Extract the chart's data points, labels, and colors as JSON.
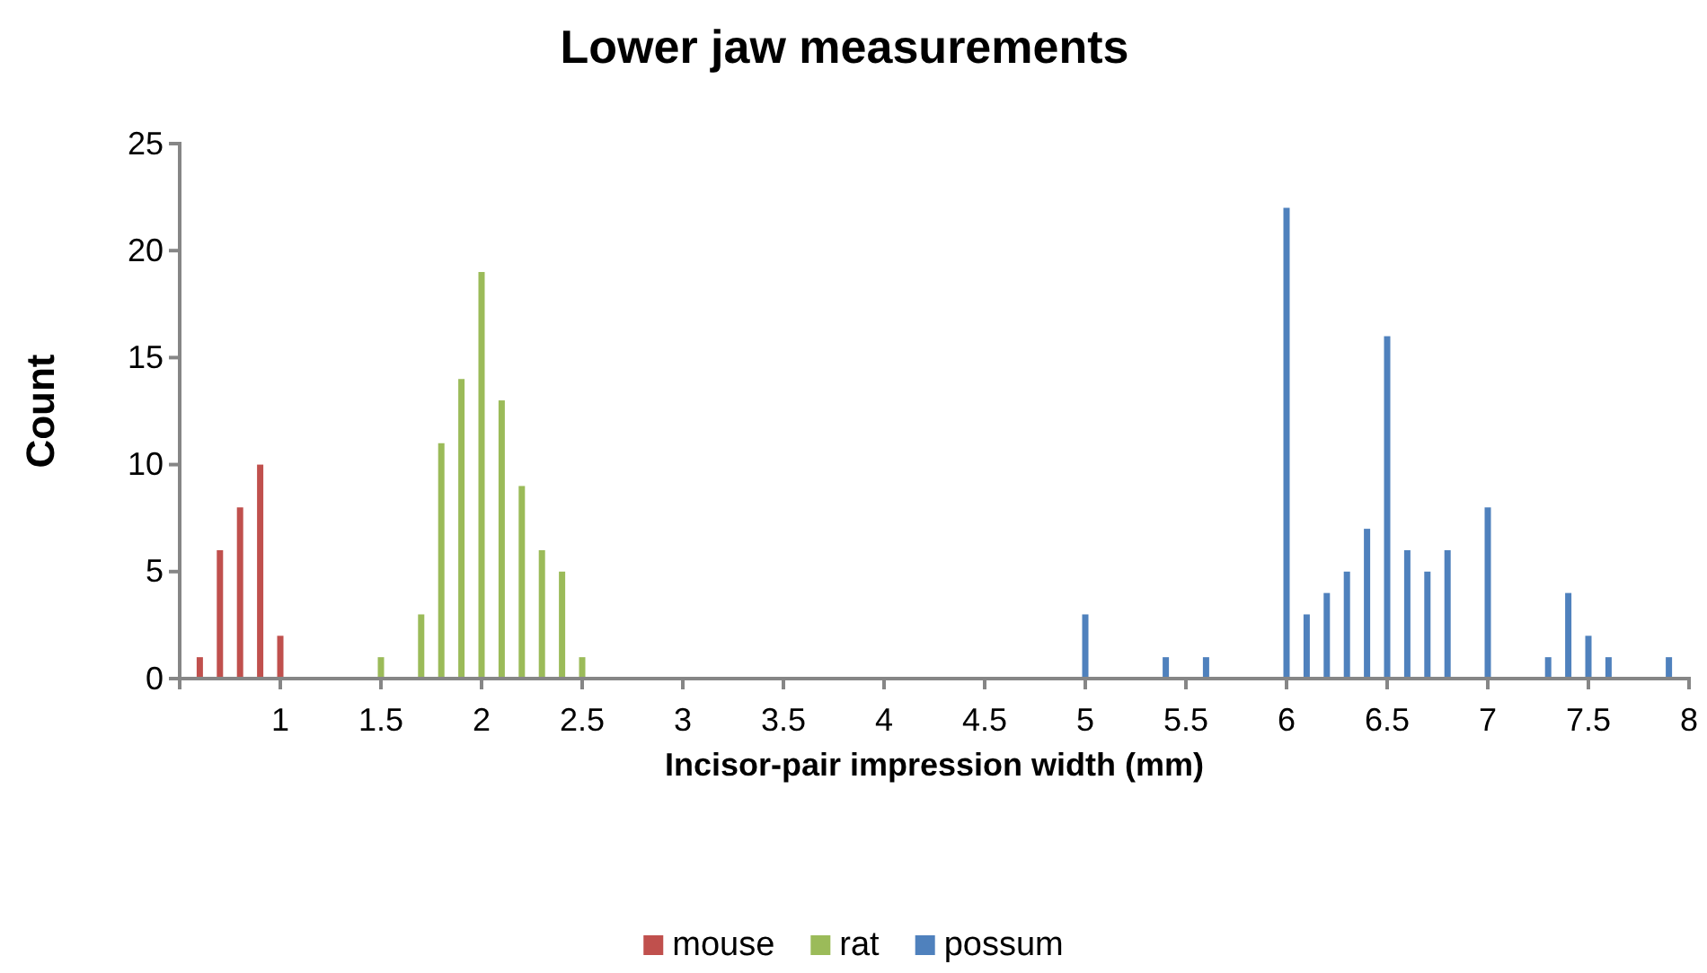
{
  "chart_data": {
    "type": "bar",
    "title": "Lower jaw measurements",
    "xlabel": "Incisor-pair impression width (mm)",
    "ylabel": "Count",
    "xlim": [
      0.5,
      8
    ],
    "xticks": [
      {
        "value": 0.5,
        "label": null
      },
      1,
      1.5,
      2,
      2.5,
      3,
      3.5,
      4,
      4.5,
      5,
      5.5,
      6,
      6.5,
      7,
      7.5,
      8
    ],
    "ylim": [
      0,
      25
    ],
    "yticks": [
      0,
      5,
      10,
      15,
      20,
      25
    ],
    "grid": false,
    "legend": "bottom",
    "series": [
      {
        "name": "mouse",
        "color": "#c0504d",
        "x": [
          0.6,
          0.7,
          0.8,
          0.9,
          1.0
        ],
        "values": [
          1,
          6,
          8,
          10,
          2
        ]
      },
      {
        "name": "rat",
        "color": "#9bbb59",
        "x": [
          1.5,
          1.7,
          1.8,
          1.9,
          2.0,
          2.1,
          2.2,
          2.3,
          2.4,
          2.5
        ],
        "values": [
          1,
          3,
          11,
          14,
          19,
          13,
          9,
          6,
          5,
          1
        ]
      },
      {
        "name": "possum",
        "color": "#4f81bd",
        "x": [
          5.0,
          5.4,
          5.6,
          6.0,
          6.1,
          6.2,
          6.3,
          6.4,
          6.5,
          6.6,
          6.7,
          6.8,
          7.0,
          7.3,
          7.4,
          7.5,
          7.6,
          7.9
        ],
        "values": [
          3,
          1,
          1,
          22,
          3,
          4,
          5,
          7,
          16,
          6,
          5,
          6,
          8,
          1,
          4,
          2,
          1,
          1
        ]
      }
    ]
  }
}
